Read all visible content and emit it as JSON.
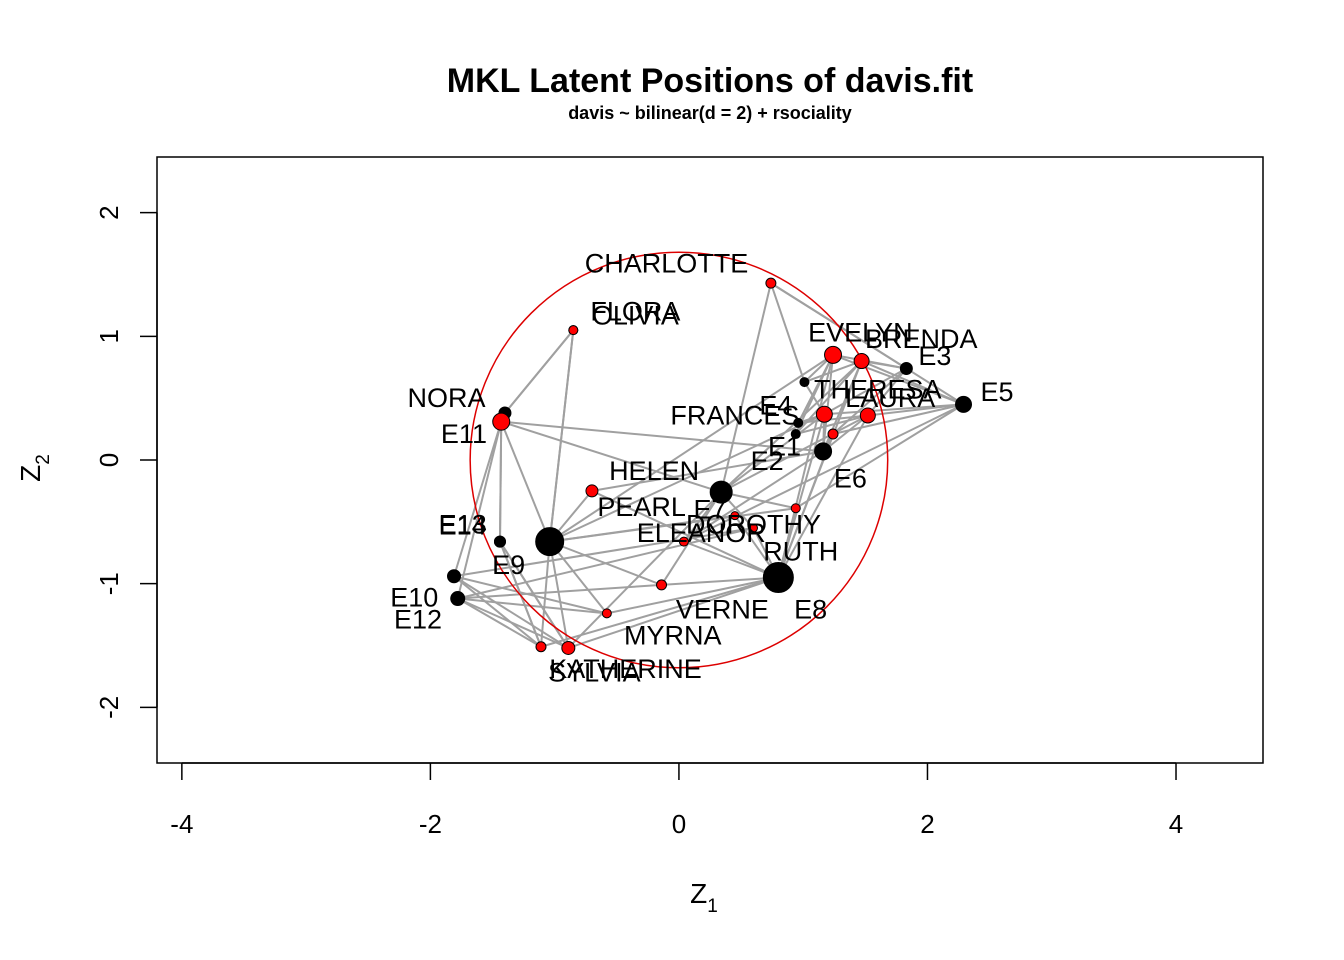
{
  "chart_data": {
    "type": "scatter",
    "title": "MKL Latent Positions of davis.fit",
    "subtitle": "davis ~ bilinear(d = 2) + rsociality",
    "xlabel": "Z",
    "xlabel_sub": "1",
    "ylabel": "Z",
    "ylabel_sub": "2",
    "xlim": [
      -4.2,
      4.7
    ],
    "ylim": [
      -2.45,
      2.45
    ],
    "xticks": [
      "-4",
      "-2",
      "0",
      "2",
      "4"
    ],
    "xtick_values": [
      -4,
      -2,
      0,
      2,
      4
    ],
    "yticks": [
      "-2",
      "-1",
      "0",
      "1",
      "2"
    ],
    "ytick_values": [
      -2,
      -1,
      0,
      1,
      2
    ],
    "circle": {
      "cx": 0.0,
      "cy": 0.0,
      "r": 1.68,
      "color": "#dd0000"
    },
    "colors": {
      "women": "#ff0000",
      "events": "#000000",
      "edges": "#a0a0a0"
    },
    "women": [
      {
        "name": "EVELYN",
        "x": 1.24,
        "y": 0.85,
        "size": 8.5,
        "label": "EVELYN",
        "lx": 1.46,
        "ly": 1.03
      },
      {
        "name": "LAURA",
        "x": 1.52,
        "y": 0.36,
        "size": 7.5,
        "label": "LAURA",
        "lx": 1.7,
        "ly": 0.5
      },
      {
        "name": "THERESA",
        "x": 1.17,
        "y": 0.37,
        "size": 8.0,
        "label": "THERESA",
        "lx": 1.6,
        "ly": 0.57
      },
      {
        "name": "BRENDA",
        "x": 1.47,
        "y": 0.8,
        "size": 7.5,
        "label": "BRENDA",
        "lx": 1.95,
        "ly": 0.98
      },
      {
        "name": "CHARLOTTE",
        "x": 0.74,
        "y": 1.43,
        "size": 5.0,
        "label": "CHARLOTTE",
        "lx": -0.1,
        "ly": 1.59
      },
      {
        "name": "FRANCES",
        "x": 1.24,
        "y": 0.21,
        "size": 5.0,
        "label": "FRANCES",
        "lx": 0.45,
        "ly": 0.36
      },
      {
        "name": "ELEANOR",
        "x": 0.04,
        "y": -0.66,
        "size": 4.5,
        "label": "ELEANOR",
        "lx": 0.18,
        "ly": -0.59
      },
      {
        "name": "PEARL",
        "x": -0.7,
        "y": -0.25,
        "size": 6.0,
        "label": "PEARL",
        "lx": -0.3,
        "ly": -0.38
      },
      {
        "name": "RUTH",
        "x": 0.94,
        "y": -0.39,
        "size": 4.5,
        "label": "RUTH",
        "lx": 0.98,
        "ly": -0.74
      },
      {
        "name": "VERNE",
        "x": -0.14,
        "y": -1.01,
        "size": 5.0,
        "label": "VERNE",
        "lx": 0.35,
        "ly": -1.21
      },
      {
        "name": "MYRNA",
        "x": -0.58,
        "y": -1.24,
        "size": 4.5,
        "label": "MYRNA",
        "lx": -0.05,
        "ly": -1.42
      },
      {
        "name": "KATHERINE",
        "x": -1.11,
        "y": -1.51,
        "size": 5.0,
        "label": "KATHERINE",
        "lx": -0.43,
        "ly": -1.69
      },
      {
        "name": "SYLVIA",
        "x": -0.89,
        "y": -1.52,
        "size": 6.5,
        "label": "SYLVIA",
        "lx": -0.68,
        "ly": -1.72
      },
      {
        "name": "NORA",
        "x": -1.43,
        "y": 0.31,
        "size": 8.5,
        "label": "NORA",
        "lx": -1.87,
        "ly": 0.5
      },
      {
        "name": "HELEN",
        "x": 0.6,
        "y": -0.55,
        "size": 4.0,
        "label": "HELEN",
        "lx": -0.2,
        "ly": -0.09
      },
      {
        "name": "DOROTHY",
        "x": 0.45,
        "y": -0.45,
        "size": 4.0,
        "label": "DOROTHY",
        "lx": 0.6,
        "ly": -0.52
      },
      {
        "name": "OLIVIA",
        "x": -0.85,
        "y": 1.05,
        "size": 4.5,
        "label": "OLIVIA",
        "lx": -0.35,
        "ly": 1.17
      },
      {
        "name": "FLORA",
        "x": -0.85,
        "y": 1.05,
        "size": 4.5,
        "label": "FLORA",
        "lx": -0.35,
        "ly": 1.2
      }
    ],
    "events": [
      {
        "name": "E1",
        "x": 0.94,
        "y": 0.21,
        "size": 4.5,
        "label": "E1",
        "lx": 0.85,
        "ly": 0.11
      },
      {
        "name": "E2",
        "x": 0.96,
        "y": 0.3,
        "size": 4.5,
        "label": "E2",
        "lx": 0.71,
        "ly": -0.01
      },
      {
        "name": "E3",
        "x": 1.83,
        "y": 0.74,
        "size": 6.0,
        "label": "E3",
        "lx": 2.06,
        "ly": 0.84
      },
      {
        "name": "E4",
        "x": 1.01,
        "y": 0.63,
        "size": 4.5,
        "label": "E4",
        "lx": 0.78,
        "ly": 0.44
      },
      {
        "name": "E5",
        "x": 2.29,
        "y": 0.45,
        "size": 8.0,
        "label": "E5",
        "lx": 2.56,
        "ly": 0.55
      },
      {
        "name": "E6",
        "x": 1.16,
        "y": 0.07,
        "size": 8.5,
        "label": "E6",
        "lx": 1.38,
        "ly": -0.15
      },
      {
        "name": "E7",
        "x": 0.34,
        "y": -0.26,
        "size": 11.0,
        "label": "E7",
        "lx": 0.25,
        "ly": -0.4
      },
      {
        "name": "E8",
        "x": 0.8,
        "y": -0.95,
        "size": 15.0,
        "label": "E8",
        "lx": 1.06,
        "ly": -1.21
      },
      {
        "name": "E9",
        "x": -1.04,
        "y": -0.66,
        "size": 14.0,
        "label": "E9",
        "lx": -1.37,
        "ly": -0.85
      },
      {
        "name": "E10",
        "x": -1.81,
        "y": -0.94,
        "size": 6.5,
        "label": "E10",
        "lx": -2.13,
        "ly": -1.11
      },
      {
        "name": "E11",
        "x": -1.4,
        "y": 0.38,
        "size": 6.0,
        "label": "E11",
        "lx": -1.73,
        "ly": 0.21
      },
      {
        "name": "E12",
        "x": -1.78,
        "y": -1.12,
        "size": 7.0,
        "label": "E12",
        "lx": -2.1,
        "ly": -1.29
      },
      {
        "name": "E13",
        "x": -1.44,
        "y": -0.66,
        "size": 5.5,
        "label": "E13",
        "lx": -1.74,
        "ly": -0.52
      },
      {
        "name": "E14",
        "x": -1.44,
        "y": -0.66,
        "size": 5.5,
        "label": "E14",
        "lx": -1.74,
        "ly": -0.53
      }
    ],
    "edges": [
      [
        "EVELYN",
        "E1"
      ],
      [
        "EVELYN",
        "E2"
      ],
      [
        "EVELYN",
        "E3"
      ],
      [
        "EVELYN",
        "E4"
      ],
      [
        "EVELYN",
        "E5"
      ],
      [
        "EVELYN",
        "E6"
      ],
      [
        "EVELYN",
        "E8"
      ],
      [
        "EVELYN",
        "E9"
      ],
      [
        "LAURA",
        "E1"
      ],
      [
        "LAURA",
        "E2"
      ],
      [
        "LAURA",
        "E3"
      ],
      [
        "LAURA",
        "E5"
      ],
      [
        "LAURA",
        "E6"
      ],
      [
        "LAURA",
        "E7"
      ],
      [
        "LAURA",
        "E8"
      ],
      [
        "THERESA",
        "E2"
      ],
      [
        "THERESA",
        "E3"
      ],
      [
        "THERESA",
        "E4"
      ],
      [
        "THERESA",
        "E5"
      ],
      [
        "THERESA",
        "E6"
      ],
      [
        "THERESA",
        "E7"
      ],
      [
        "THERESA",
        "E8"
      ],
      [
        "THERESA",
        "E9"
      ],
      [
        "BRENDA",
        "E1"
      ],
      [
        "BRENDA",
        "E3"
      ],
      [
        "BRENDA",
        "E4"
      ],
      [
        "BRENDA",
        "E5"
      ],
      [
        "BRENDA",
        "E6"
      ],
      [
        "BRENDA",
        "E7"
      ],
      [
        "BRENDA",
        "E8"
      ],
      [
        "CHARLOTTE",
        "E3"
      ],
      [
        "CHARLOTTE",
        "E4"
      ],
      [
        "CHARLOTTE",
        "E5"
      ],
      [
        "CHARLOTTE",
        "E7"
      ],
      [
        "FRANCES",
        "E3"
      ],
      [
        "FRANCES",
        "E5"
      ],
      [
        "FRANCES",
        "E6"
      ],
      [
        "FRANCES",
        "E8"
      ],
      [
        "ELEANOR",
        "E5"
      ],
      [
        "ELEANOR",
        "E6"
      ],
      [
        "ELEANOR",
        "E7"
      ],
      [
        "ELEANOR",
        "E8"
      ],
      [
        "PEARL",
        "E6"
      ],
      [
        "PEARL",
        "E8"
      ],
      [
        "PEARL",
        "E9"
      ],
      [
        "RUTH",
        "E5"
      ],
      [
        "RUTH",
        "E7"
      ],
      [
        "RUTH",
        "E8"
      ],
      [
        "RUTH",
        "E9"
      ],
      [
        "VERNE",
        "E7"
      ],
      [
        "VERNE",
        "E8"
      ],
      [
        "VERNE",
        "E9"
      ],
      [
        "VERNE",
        "E12"
      ],
      [
        "MYRNA",
        "E8"
      ],
      [
        "MYRNA",
        "E9"
      ],
      [
        "MYRNA",
        "E10"
      ],
      [
        "MYRNA",
        "E12"
      ],
      [
        "KATHERINE",
        "E8"
      ],
      [
        "KATHERINE",
        "E9"
      ],
      [
        "KATHERINE",
        "E10"
      ],
      [
        "KATHERINE",
        "E12"
      ],
      [
        "KATHERINE",
        "E13"
      ],
      [
        "KATHERINE",
        "E14"
      ],
      [
        "SYLVIA",
        "E7"
      ],
      [
        "SYLVIA",
        "E8"
      ],
      [
        "SYLVIA",
        "E9"
      ],
      [
        "SYLVIA",
        "E10"
      ],
      [
        "SYLVIA",
        "E12"
      ],
      [
        "SYLVIA",
        "E13"
      ],
      [
        "SYLVIA",
        "E14"
      ],
      [
        "NORA",
        "E6"
      ],
      [
        "NORA",
        "E7"
      ],
      [
        "NORA",
        "E9"
      ],
      [
        "NORA",
        "E10"
      ],
      [
        "NORA",
        "E11"
      ],
      [
        "NORA",
        "E12"
      ],
      [
        "NORA",
        "E13"
      ],
      [
        "NORA",
        "E14"
      ],
      [
        "HELEN",
        "E7"
      ],
      [
        "HELEN",
        "E8"
      ],
      [
        "HELEN",
        "E10"
      ],
      [
        "HELEN",
        "E12"
      ],
      [
        "DOROTHY",
        "E8"
      ],
      [
        "DOROTHY",
        "E9"
      ],
      [
        "OLIVIA",
        "E9"
      ],
      [
        "OLIVIA",
        "E11"
      ],
      [
        "FLORA",
        "E9"
      ],
      [
        "FLORA",
        "E11"
      ]
    ]
  }
}
